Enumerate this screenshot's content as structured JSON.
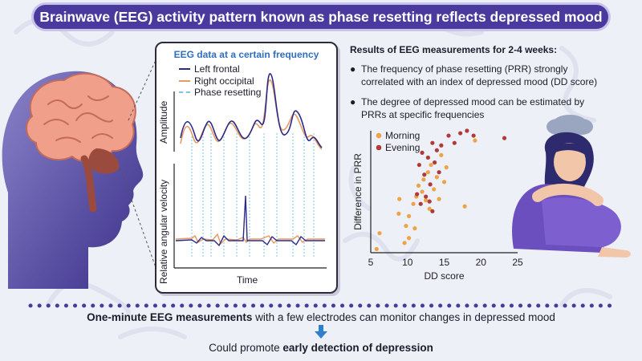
{
  "title": "Brainwave (EEG) activity pattern known as phase resetting reflects depressed mood",
  "eeg_panel": {
    "title": "EEG data at a certain frequency",
    "legend": [
      {
        "label": "Left frontal",
        "color": "#2b2a8a"
      },
      {
        "label": "Right occipital",
        "color": "#e79a5d"
      },
      {
        "label": "Phase resetting",
        "color": "#7fc4e2"
      }
    ],
    "top_ylabel": "Amplitude",
    "bottom_ylabel": "Relative angular velocity",
    "xlabel": "Time"
  },
  "results": {
    "title": "Results of EEG measurements for 2-4 weeks:",
    "bullets": [
      "The frequency of phase resetting (PRR) strongly correlated with an index of depressed mood (DD score)",
      "The degree of depressed mood can be estimated by PRRs at specific frequencies"
    ]
  },
  "chart_data": {
    "type": "scatter",
    "xlabel": "DD score",
    "ylabel": "Difference in PRR",
    "xlim": [
      5,
      25
    ],
    "x_ticks": [
      "5",
      "10",
      "15",
      "20",
      "25"
    ],
    "y_ticks_shown": false,
    "legend_placement": "top-left",
    "series": [
      {
        "name": "Morning",
        "color": "#eea347",
        "points": [
          [
            5.8,
            0.03
          ],
          [
            6.2,
            0.16
          ],
          [
            8.8,
            0.32
          ],
          [
            8.9,
            0.44
          ],
          [
            9.6,
            0.08
          ],
          [
            9.8,
            0.22
          ],
          [
            10.2,
            0.3
          ],
          [
            10.8,
            0.4
          ],
          [
            11.2,
            0.46
          ],
          [
            11.5,
            0.55
          ],
          [
            12,
            0.5
          ],
          [
            12.2,
            0.6
          ],
          [
            12.5,
            0.43
          ],
          [
            12.8,
            0.66
          ],
          [
            13.0,
            0.36
          ],
          [
            13.2,
            0.72
          ],
          [
            13.6,
            0.52
          ],
          [
            14.0,
            0.62
          ],
          [
            14.3,
            0.44
          ],
          [
            14.6,
            0.8
          ],
          [
            15.0,
            0.58
          ],
          [
            15.3,
            0.7
          ],
          [
            10.2,
            0.12
          ],
          [
            11.0,
            0.2
          ],
          [
            17.8,
            0.38
          ],
          [
            19.2,
            0.92
          ]
        ]
      },
      {
        "name": "Evening",
        "color": "#b03a3a",
        "points": [
          [
            11.6,
            0.72
          ],
          [
            12.0,
            0.82
          ],
          [
            12.3,
            0.64
          ],
          [
            12.8,
            0.78
          ],
          [
            13.1,
            0.56
          ],
          [
            13.4,
            0.9
          ],
          [
            13.7,
            0.74
          ],
          [
            14.0,
            0.84
          ],
          [
            14.3,
            0.66
          ],
          [
            14.6,
            0.88
          ],
          [
            11.3,
            0.48
          ],
          [
            11.8,
            0.4
          ],
          [
            12.5,
            0.46
          ],
          [
            13.0,
            0.42
          ],
          [
            13.4,
            0.34
          ],
          [
            15.6,
            0.96
          ],
          [
            16.4,
            0.9
          ],
          [
            17.2,
            0.98
          ],
          [
            18.1,
            1.0
          ],
          [
            19.0,
            0.96
          ],
          [
            23.2,
            0.94
          ]
        ]
      }
    ]
  },
  "bottom": {
    "line1_bold": "One-minute EEG measurements",
    "line1_rest": " with a few electrodes can monitor changes in depressed mood",
    "line2_pre": "Could promote ",
    "line2_bold": "early detection of depression"
  }
}
